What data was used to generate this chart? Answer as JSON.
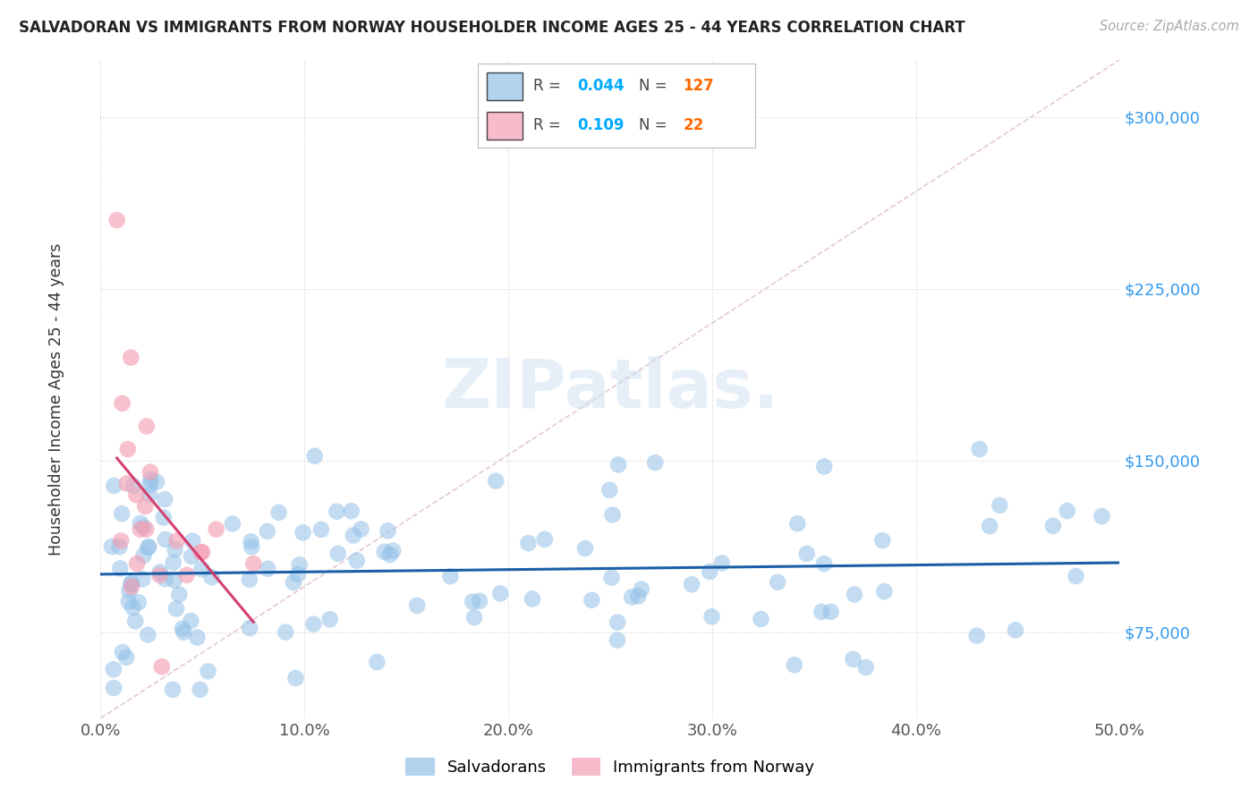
{
  "title": "SALVADORAN VS IMMIGRANTS FROM NORWAY HOUSEHOLDER INCOME AGES 25 - 44 YEARS CORRELATION CHART",
  "source": "Source: ZipAtlas.com",
  "ylabel": "Householder Income Ages 25 - 44 years",
  "xlim": [
    0.0,
    0.5
  ],
  "ylim": [
    37500,
    325000
  ],
  "yticks": [
    75000,
    150000,
    225000,
    300000
  ],
  "ytick_labels": [
    "$75,000",
    "$150,000",
    "$225,000",
    "$300,000"
  ],
  "xticks": [
    0.0,
    0.1,
    0.2,
    0.3,
    0.4,
    0.5
  ],
  "xtick_labels": [
    "0.0%",
    "10.0%",
    "20.0%",
    "30.0%",
    "40.0%",
    "50.0%"
  ],
  "blue_R": 0.044,
  "blue_N": 127,
  "pink_R": 0.109,
  "pink_N": 22,
  "blue_color": "#92c0e8",
  "pink_color": "#f4a0b5",
  "blue_line_color": "#1a5fa8",
  "pink_line_color": "#d44070",
  "diag_line_color": "#ddbbcc",
  "watermark": "ZIPatlas.",
  "legend_R_color": "#00aaff",
  "legend_N_color": "#ff6600",
  "background_color": "#ffffff",
  "blue_slope": 15000,
  "blue_intercept": 100000,
  "pink_slope": 400000,
  "pink_intercept": 120000
}
